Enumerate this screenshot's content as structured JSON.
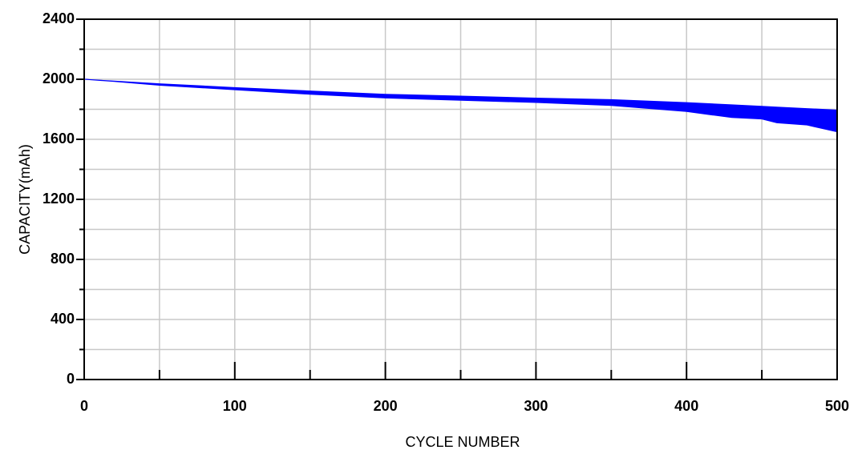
{
  "chart_data": {
    "type": "band",
    "x_label": "CYCLE NUMBER",
    "y_label": "CAPACITY(mAh)",
    "x": [
      0,
      20,
      50,
      100,
      150,
      200,
      250,
      300,
      350,
      400,
      430,
      450,
      460,
      480,
      500
    ],
    "high": [
      2000,
      1988,
      1970,
      1945,
      1922,
      1900,
      1888,
      1875,
      1865,
      1845,
      1830,
      1820,
      1815,
      1805,
      1795
    ],
    "low": [
      2000,
      1985,
      1960,
      1930,
      1900,
      1875,
      1860,
      1845,
      1825,
      1785,
      1745,
      1735,
      1710,
      1695,
      1650
    ],
    "color": "#0000ff",
    "xlim": [
      0,
      500
    ],
    "ylim": [
      0,
      2400
    ],
    "xticks": [
      0,
      100,
      200,
      300,
      400,
      500
    ],
    "yticks": [
      0,
      400,
      800,
      1200,
      1600,
      2000,
      2400
    ],
    "x_minor_ticks": [
      50,
      150,
      250,
      350,
      450
    ],
    "y_minor_ticks": [
      200,
      600,
      1000,
      1400,
      1800,
      2200
    ],
    "grid": true
  }
}
